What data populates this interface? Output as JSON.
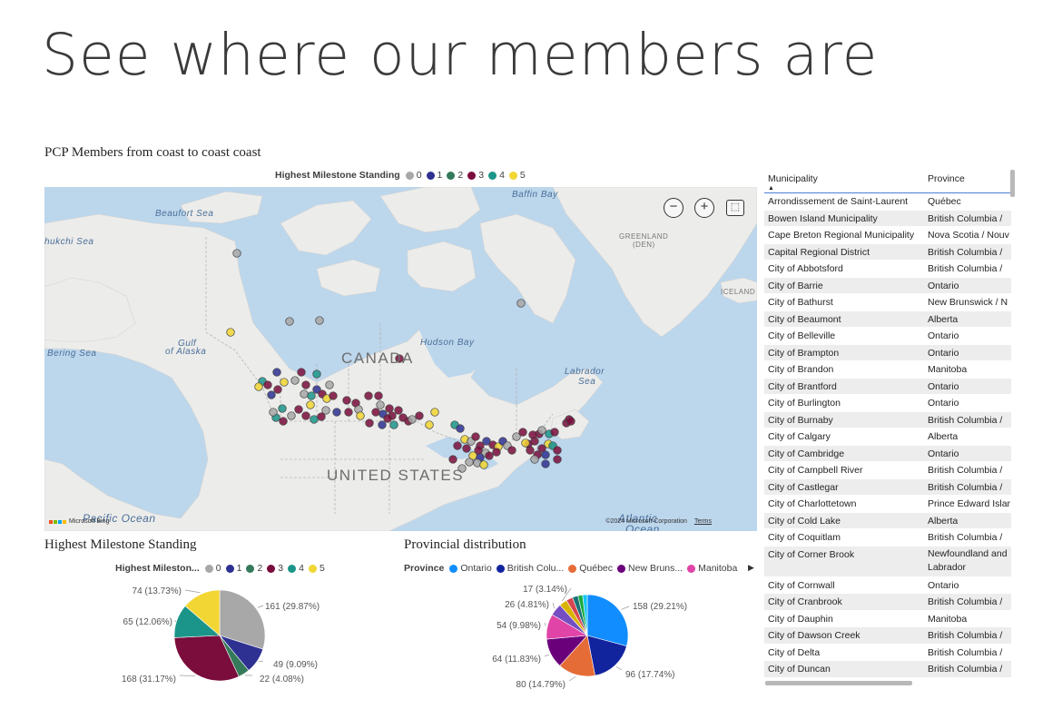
{
  "page_title": "See where our members are",
  "map_visual": {
    "title": "PCP Members from coast to coast coast",
    "legend": {
      "title": "Highest Milestone Standing",
      "items": [
        {
          "label": "0",
          "color": "#a8a8a8"
        },
        {
          "label": "1",
          "color": "#2e3192"
        },
        {
          "label": "2",
          "color": "#357a5a"
        },
        {
          "label": "3",
          "color": "#7a0d3c"
        },
        {
          "label": "4",
          "color": "#1b9589"
        },
        {
          "label": "5",
          "color": "#f2d633"
        }
      ]
    },
    "labels": {
      "baffin_bay": "Baffin Bay",
      "beaufort_sea": "Beaufort Sea",
      "chukchi_sea": "hukchi Sea",
      "greenland": "GREENLAND",
      "greenland_sub": "(DEN)",
      "iceland": "ICELAND",
      "canada": "CANADA",
      "hudson_bay": "Hudson Bay",
      "labrador_sea_1": "Labrador",
      "labrador_sea_2": "Sea",
      "gulf_1": "Gulf",
      "gulf_2": "of Alaska",
      "bering_sea": "Bering Sea",
      "united_states": "UNITED STATES",
      "pacific_ocean": "Pacific Ocean",
      "atlantic_1": "Atlantic",
      "atlantic_2": "Ocean",
      "copyright": "©2024 Microsoft Corporation",
      "terms": "Terms",
      "ms_brand": "Microsoft Bing"
    },
    "controls": {
      "zoom_out": "−",
      "zoom_in": "+",
      "select": "⬚"
    }
  },
  "milestone_chart": {
    "title": "Highest Milestone Standing",
    "legend_title": "Highest Mileston...",
    "legend_items": [
      {
        "label": "0",
        "color": "#a8a8a8"
      },
      {
        "label": "1",
        "color": "#2e3192"
      },
      {
        "label": "2",
        "color": "#357a5a"
      },
      {
        "label": "3",
        "color": "#7a0d3c"
      },
      {
        "label": "4",
        "color": "#1b9589"
      },
      {
        "label": "5",
        "color": "#f2d633"
      }
    ]
  },
  "province_chart": {
    "title": "Provincial distribution",
    "legend_title": "Province",
    "legend_items": [
      {
        "label": "Ontario",
        "color": "#118dff"
      },
      {
        "label": "British Colu...",
        "color": "#12239e"
      },
      {
        "label": "Québec",
        "color": "#e66c37"
      },
      {
        "label": "New Bruns...",
        "color": "#6b007b"
      },
      {
        "label": "Manitoba",
        "color": "#e044a7"
      }
    ],
    "more_arrow": "▶"
  },
  "chart_data": [
    {
      "type": "pie",
      "title": "Highest Milestone Standing",
      "legend_title": "Highest Milestone Standing",
      "slices": [
        {
          "label": "0",
          "value": 161,
          "display": "161 (29.87%)",
          "color": "#a8a8a8"
        },
        {
          "label": "1",
          "value": 49,
          "display": "49 (9.09%)",
          "color": "#2e3192"
        },
        {
          "label": "2",
          "value": 22,
          "display": "22 (4.08%)",
          "color": "#357a5a"
        },
        {
          "label": "3",
          "value": 168,
          "display": "168 (31.17%)",
          "color": "#7a0d3c"
        },
        {
          "label": "4",
          "value": 65,
          "display": "65 (12.06%)",
          "color": "#1b9589"
        },
        {
          "label": "5",
          "value": 74,
          "display": "74 (13.73%)",
          "color": "#f2d633"
        }
      ]
    },
    {
      "type": "pie",
      "title": "Provincial distribution",
      "legend_title": "Province",
      "slices": [
        {
          "label": "Ontario",
          "value": 158,
          "display": "158 (29.21%)",
          "color": "#118dff"
        },
        {
          "label": "British Columbia",
          "value": 96,
          "display": "96 (17.74%)",
          "color": "#12239e"
        },
        {
          "label": "Québec",
          "value": 80,
          "display": "80 (14.79%)",
          "color": "#e66c37"
        },
        {
          "label": "New Brunswick",
          "value": 64,
          "display": "64 (11.83%)",
          "color": "#6b007b"
        },
        {
          "label": "Manitoba",
          "value": 54,
          "display": "54 (9.98%)",
          "color": "#e044a7"
        },
        {
          "label": "",
          "value": 26,
          "display": "26 (4.81%)",
          "color": "#744ec2"
        },
        {
          "label": "",
          "value": 17,
          "display": "17 (3.14%)",
          "color": "#d9b300"
        },
        {
          "label": "",
          "value": 14,
          "display": "",
          "color": "#d64550"
        },
        {
          "label": "",
          "value": 12,
          "display": "",
          "color": "#197278"
        },
        {
          "label": "",
          "value": 10,
          "display": "",
          "color": "#1aab40"
        },
        {
          "label": "",
          "value": 10,
          "display": "",
          "color": "#15c6f4"
        }
      ]
    }
  ],
  "table": {
    "columns": [
      "Municipality",
      "Province"
    ],
    "rows": [
      [
        "Arrondissement de Saint-Laurent",
        "Québec"
      ],
      [
        "Bowen Island Municipality",
        "British Columbia /"
      ],
      [
        "Cape Breton Regional Municipality",
        "Nova Scotia / Nouv"
      ],
      [
        "Capital Regional District",
        "British Columbia /"
      ],
      [
        "City of Abbotsford",
        "British Columbia /"
      ],
      [
        "City of Barrie",
        "Ontario"
      ],
      [
        "City of Bathurst",
        "New Brunswick / N"
      ],
      [
        "City of Beaumont",
        "Alberta"
      ],
      [
        "City of Belleville",
        "Ontario"
      ],
      [
        "City of Brampton",
        "Ontario"
      ],
      [
        "City of Brandon",
        "Manitoba"
      ],
      [
        "City of Brantford",
        "Ontario"
      ],
      [
        "City of Burlington",
        "Ontario"
      ],
      [
        "City of Burnaby",
        "British Columbia /"
      ],
      [
        "City of Calgary",
        "Alberta"
      ],
      [
        "City of Cambridge",
        "Ontario"
      ],
      [
        "City of Campbell River",
        "British Columbia /"
      ],
      [
        "City of Castlegar",
        "British Columbia /"
      ],
      [
        "City of Charlottetown",
        "Prince Edward Islar"
      ],
      [
        "City of Cold Lake",
        "Alberta"
      ],
      [
        "City of Coquitlam",
        "British Columbia /"
      ],
      [
        "City of Corner Brook",
        "Newfoundland and Labrador"
      ],
      [
        "City of Cornwall",
        "Ontario"
      ],
      [
        "City of Cranbrook",
        "British Columbia /"
      ],
      [
        "City of Dauphin",
        "Manitoba"
      ],
      [
        "City of Dawson Creek",
        "British Columbia /"
      ],
      [
        "City of Delta",
        "British Columbia /"
      ],
      [
        "City of Duncan",
        "British Columbia /"
      ]
    ]
  }
}
